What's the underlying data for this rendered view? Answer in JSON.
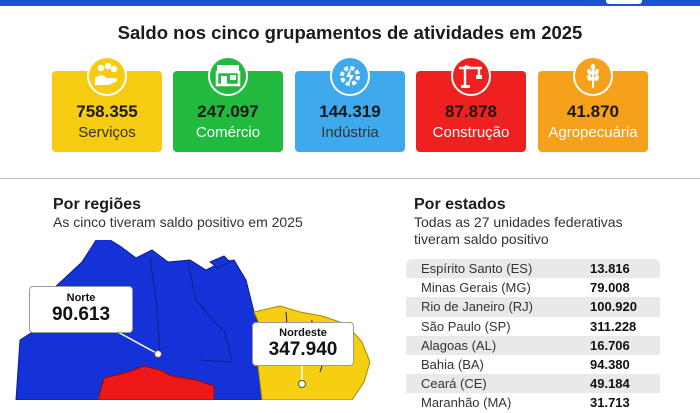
{
  "headline": "Saldo nos cinco grupamentos de atividades em 2025",
  "colors": {
    "servicos": "#f5cc10",
    "comercio": "#22b93f",
    "industria": "#3ea9ec",
    "construcao": "#ee2020",
    "agropecuaria": "#f5a11c",
    "map_blue": "#1432d8",
    "map_red": "#ee1717",
    "map_yellow": "#f7cf12",
    "topbar": "#1f4fd1"
  },
  "cards": [
    {
      "value": "758.355",
      "label": "Serviços",
      "icon": "hand-coins-icon"
    },
    {
      "value": "247.097",
      "label": "Comércio",
      "icon": "store-icon"
    },
    {
      "value": "144.319",
      "label": "Indústria",
      "icon": "gear-lightning-icon"
    },
    {
      "value": "87.878",
      "label": "Construção",
      "icon": "crane-icon"
    },
    {
      "value": "41.870",
      "label": "Agropecuária",
      "icon": "wheat-icon"
    }
  ],
  "regions": {
    "title": "Por regiões",
    "subtitle": "As cinco tiveram saldo positivo em 2025",
    "callouts": [
      {
        "name": "Norte",
        "value": "90.613"
      },
      {
        "name": "Nordeste",
        "value": "347.940"
      }
    ]
  },
  "states": {
    "title": "Por estados",
    "subtitle": "Todas as 27 unidades federativas tiveram saldo positivo",
    "rows": [
      {
        "name": "Espírito Santo (ES)",
        "value": "13.816"
      },
      {
        "name": "Minas Gerais (MG)",
        "value": "79.008"
      },
      {
        "name": "Rio de Janeiro (RJ)",
        "value": "100.920"
      },
      {
        "name": "São Paulo (SP)",
        "value": "311.228"
      },
      {
        "name": "Alagoas (AL)",
        "value": "16.706"
      },
      {
        "name": "Bahia (BA)",
        "value": "94.380"
      },
      {
        "name": "Ceará (CE)",
        "value": "49.184"
      },
      {
        "name": "Maranhão (MA)",
        "value": "31.713"
      }
    ]
  }
}
